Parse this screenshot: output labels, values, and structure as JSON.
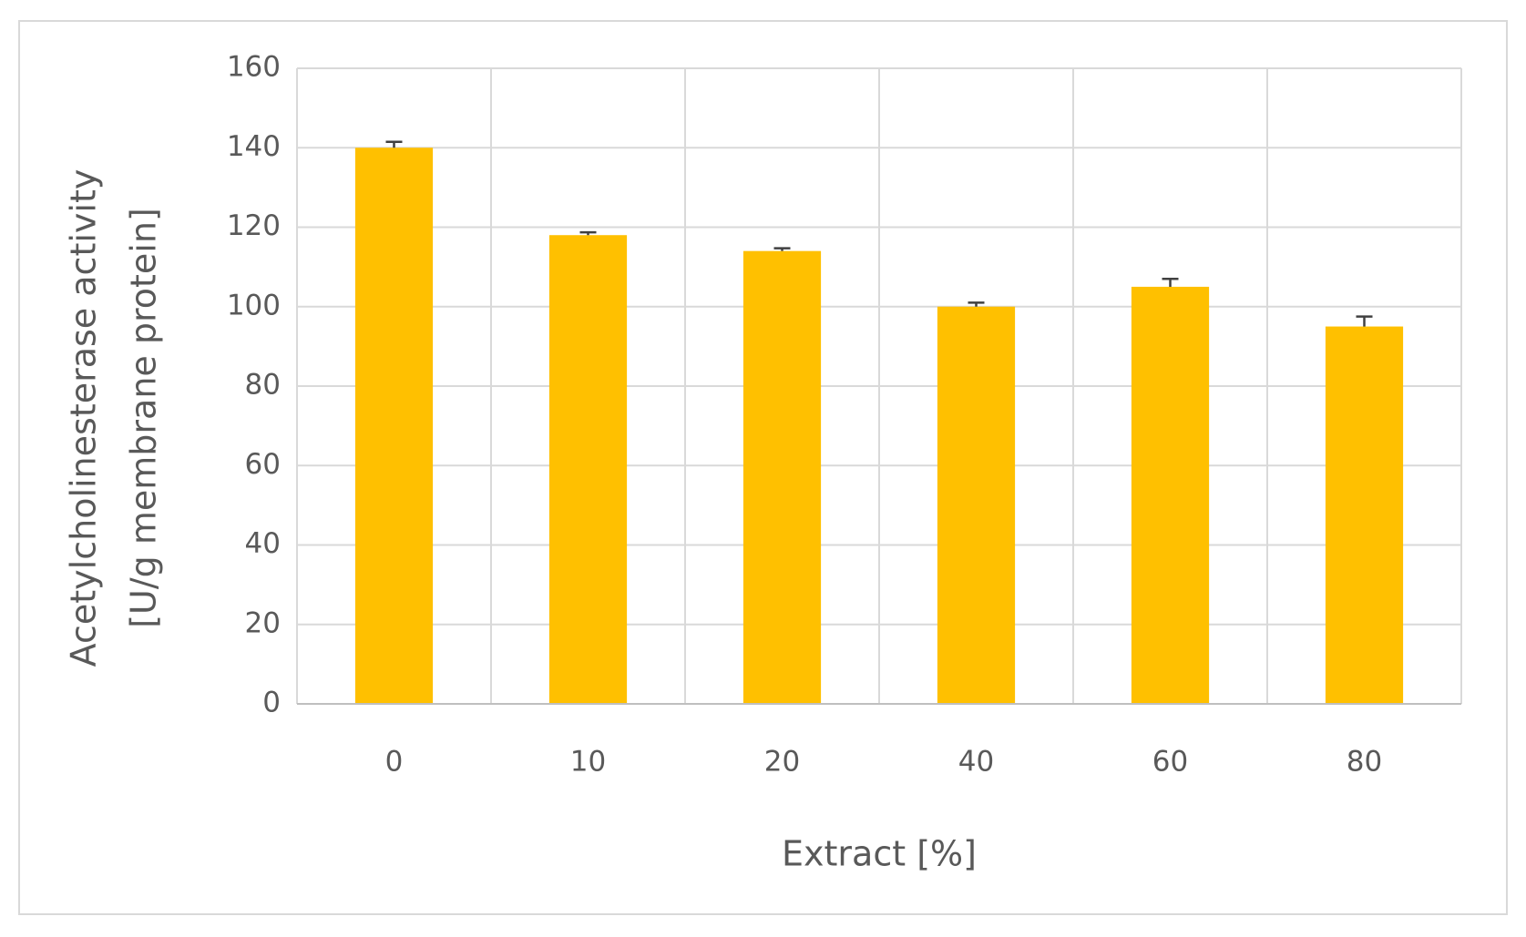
{
  "chart_data": {
    "type": "bar",
    "xlabel": "Extract [%]",
    "ylabel": [
      "Acetylcholinesterase activity",
      "[U/g membrane protein]"
    ],
    "categories": [
      "0",
      "10",
      "20",
      "40",
      "60",
      "80"
    ],
    "values": [
      140,
      118,
      114,
      100,
      105,
      95
    ],
    "errors": [
      1.5,
      0.7,
      0.7,
      1,
      2,
      2.5
    ],
    "color": "#ffc000",
    "ylim": [
      0,
      160
    ],
    "yticks": [
      0,
      20,
      40,
      60,
      80,
      100,
      120,
      140,
      160
    ],
    "grid": true
  }
}
